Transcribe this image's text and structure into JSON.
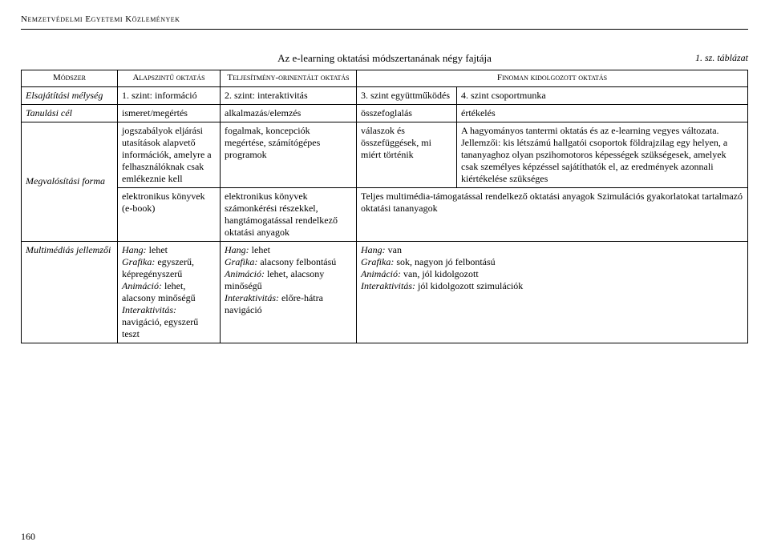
{
  "header": {
    "running": "Nemzetvédelmi Egyetemi Közlemények",
    "title": "Az e-learning oktatási módszertanának négy fajtája",
    "table_label": "1. sz. táblázat",
    "page_number": "160"
  },
  "columns": {
    "c0": "Módszer",
    "c1": "Alapszintű oktatás",
    "c2": "Teljesítmény-orinentált oktatás",
    "c3_4": "Finoman kidolgozott oktatás"
  },
  "row_level": {
    "label": "Elsajátítási mélység",
    "c1": "1. szint: információ",
    "c2": "2. szint: interaktivitás",
    "c3": "3. szint együttműködés",
    "c4": "4. szint csoportmunka"
  },
  "row_goal": {
    "label": "Tanulási cél",
    "c1": "ismeret/megértés",
    "c2": "alkalmazás/elemzés",
    "c3": "összefoglalás",
    "c4": "értékelés"
  },
  "row_detail": {
    "c1": "jogszabályok eljárási utasítások alapvető információk, amelyre a felhasználóknak csak emlékeznie kell",
    "c2": "fogalmak, koncepciók megértése, számítógépes programok",
    "c3": "válaszok és összefüggések, mi miért történik",
    "c4": "A hagyományos tantermi oktatás és az e-learning vegyes változata. Jellemzői: kis létszámú hallgatói csoportok földrajzilag egy helyen, a tananyaghoz olyan pszihomotoros képességek szükségesek, amelyek csak személyes képzéssel sajátíthatók el, az eredmények azonnali kiértékelése szükséges"
  },
  "row_form": {
    "label": "Megvalósítási forma",
    "c1": "elektronikus könyvek (e-book)",
    "c2": "elektronikus könyvek számonkérési részekkel, hangtámogatással rendelkező oktatási anyagok",
    "c3_4": "Teljes multimédia-támogatással rendelkező oktatási anyagok Szimulációs gyakorlatokat tartalmazó oktatási tananyagok"
  },
  "row_mm": {
    "label": "Multimédiás jellemzői",
    "c1": {
      "hang_l": "Hang:",
      "hang_v": " lehet",
      "graf_l": "Grafika:",
      "graf_v": " egyszerű, képregényszerű",
      "anim_l": "Animáció:",
      "anim_v": " lehet, alacsony minőségű",
      "int_l": "Interaktivitás:",
      "int_v": " navigáció, egyszerű teszt"
    },
    "c2": {
      "hang_l": "Hang:",
      "hang_v": " lehet",
      "graf_l": "Grafika:",
      "graf_v": " alacsony felbontású",
      "anim_l": "Animáció:",
      "anim_v": " lehet, alacsony minőségű",
      "int_l": "Interaktivitás:",
      "int_v": " előre-hátra navigáció"
    },
    "c3_4": {
      "hang_l": "Hang:",
      "hang_v": " van",
      "graf_l": "Grafika:",
      "graf_v": " sok, nagyon jó felbontású",
      "anim_l": "Animáció:",
      "anim_v": " van, jól kidolgozott",
      "int_l": "Interaktivitás:",
      "int_v": " jól kidolgozott szimulációk"
    }
  }
}
